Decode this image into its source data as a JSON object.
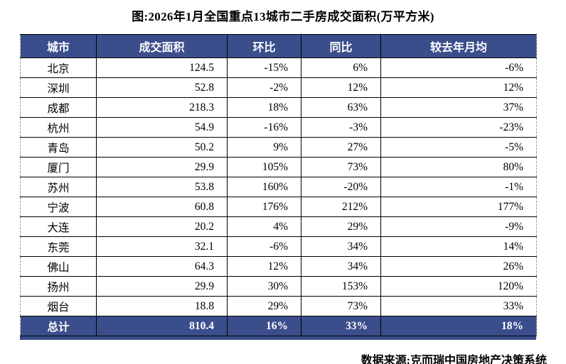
{
  "title": "图:2026年1月全国重点13城市二手房成交面积(万平方米)",
  "source": "数据来源:克而瑞中国房地产决策系统",
  "colors": {
    "header_bg": "#3B4E8C",
    "grid_line": "#000000",
    "page_break_dash": "#9a9a9a",
    "body_text": "#000000",
    "header_text": "#ffffff"
  },
  "chart_data": {
    "type": "table",
    "columns": [
      "城市",
      "成交面积",
      "环比",
      "同比",
      "较去年月均"
    ],
    "rows": [
      {
        "city": "北京",
        "area": "124.5",
        "mom": "-15%",
        "yoy": "6%",
        "vs_year_avg": "-6%"
      },
      {
        "city": "深圳",
        "area": "52.8",
        "mom": "-2%",
        "yoy": "12%",
        "vs_year_avg": "12%"
      },
      {
        "city": "成都",
        "area": "218.3",
        "mom": "18%",
        "yoy": "63%",
        "vs_year_avg": "37%"
      },
      {
        "city": "杭州",
        "area": "54.9",
        "mom": "-16%",
        "yoy": "-3%",
        "vs_year_avg": "-23%"
      },
      {
        "city": "青岛",
        "area": "50.2",
        "mom": "9%",
        "yoy": "27%",
        "vs_year_avg": "-5%"
      },
      {
        "city": "厦门",
        "area": "29.9",
        "mom": "105%",
        "yoy": "73%",
        "vs_year_avg": "80%"
      },
      {
        "city": "苏州",
        "area": "53.8",
        "mom": "160%",
        "yoy": "-20%",
        "vs_year_avg": "-1%"
      },
      {
        "city": "宁波",
        "area": "60.8",
        "mom": "176%",
        "yoy": "212%",
        "vs_year_avg": "177%"
      },
      {
        "city": "大连",
        "area": "20.2",
        "mom": "4%",
        "yoy": "29%",
        "vs_year_avg": "-9%"
      },
      {
        "city": "东莞",
        "area": "32.1",
        "mom": "-6%",
        "yoy": "34%",
        "vs_year_avg": "14%"
      },
      {
        "city": "佛山",
        "area": "64.3",
        "mom": "12%",
        "yoy": "34%",
        "vs_year_avg": "26%"
      },
      {
        "city": "扬州",
        "area": "29.9",
        "mom": "30%",
        "yoy": "153%",
        "vs_year_avg": "120%"
      },
      {
        "city": "烟台",
        "area": "18.8",
        "mom": "29%",
        "yoy": "73%",
        "vs_year_avg": "33%"
      }
    ],
    "total": {
      "city": "总计",
      "area": "810.4",
      "mom": "16%",
      "yoy": "33%",
      "vs_year_avg": "18%"
    }
  }
}
